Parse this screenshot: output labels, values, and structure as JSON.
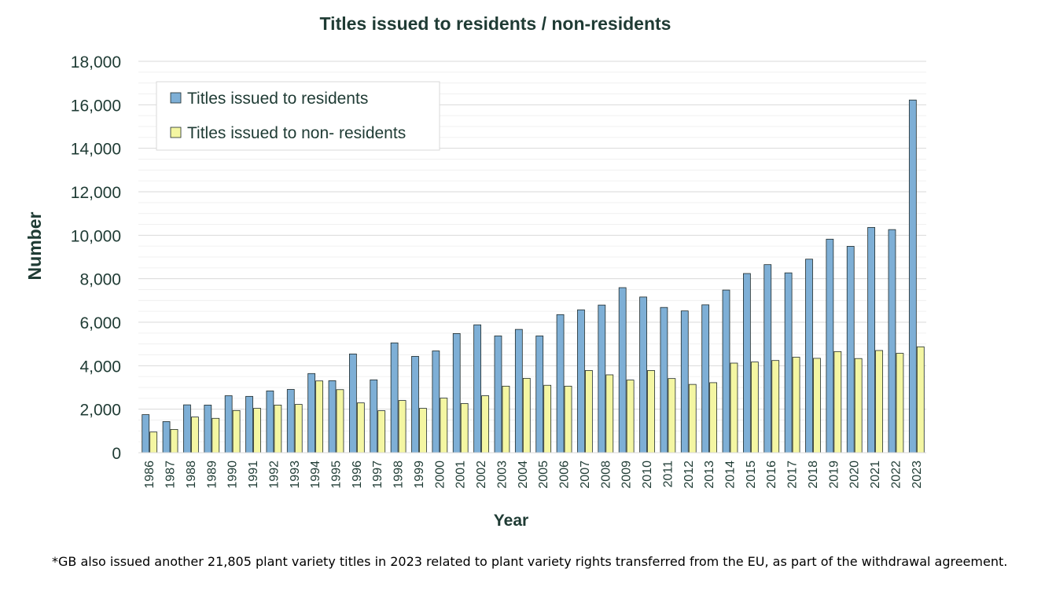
{
  "chart_data": {
    "type": "bar",
    "title": "Titles issued to residents / non-residents",
    "xlabel": "Year",
    "ylabel": "Number",
    "ylim": [
      0,
      18000
    ],
    "yticks": [
      "0",
      "2,000",
      "4,000",
      "6,000",
      "8,000",
      "10,000",
      "12,000",
      "14,000",
      "16,000",
      "18,000"
    ],
    "grid": true,
    "legend_position": "top-left",
    "categories": [
      "1986",
      "1987",
      "1988",
      "1989",
      "1990",
      "1991",
      "1992",
      "1993",
      "1994",
      "1995",
      "1996",
      "1997",
      "1998",
      "1999",
      "2000",
      "2001",
      "2002",
      "2003",
      "2004",
      "2005",
      "2006",
      "2007",
      "2008",
      "2009",
      "2010",
      "2011",
      "2012",
      "2013",
      "2014",
      "2015",
      "2016",
      "2017",
      "2018",
      "2019",
      "2020",
      "2021",
      "2022",
      "2023"
    ],
    "series": [
      {
        "name": "Titles issued to residents",
        "color": "#7eafd6",
        "values": [
          1750,
          1430,
          2200,
          2190,
          2620,
          2590,
          2840,
          2910,
          3640,
          3310,
          4540,
          3350,
          5050,
          4430,
          4680,
          5480,
          5880,
          5370,
          5670,
          5370,
          6350,
          6570,
          6790,
          7590,
          7160,
          6680,
          6520,
          6800,
          7480,
          8240,
          8650,
          8270,
          8900,
          9820,
          9490,
          10360,
          10260,
          16220
        ]
      },
      {
        "name": "Titles issued to non- residents",
        "color": "#f4f6a2",
        "values": [
          950,
          1070,
          1640,
          1580,
          1940,
          2040,
          2190,
          2220,
          3300,
          2900,
          2290,
          1930,
          2400,
          2040,
          2510,
          2260,
          2620,
          3060,
          3420,
          3100,
          3060,
          3780,
          3580,
          3340,
          3780,
          3410,
          3140,
          3220,
          4120,
          4170,
          4240,
          4390,
          4340,
          4650,
          4330,
          4700,
          4570,
          4870
        ]
      }
    ]
  },
  "footnote": "*GB also issued another 21,805 plant variety titles in 2023 related to plant variety rights transferred from the EU, as part of the withdrawal agreement."
}
